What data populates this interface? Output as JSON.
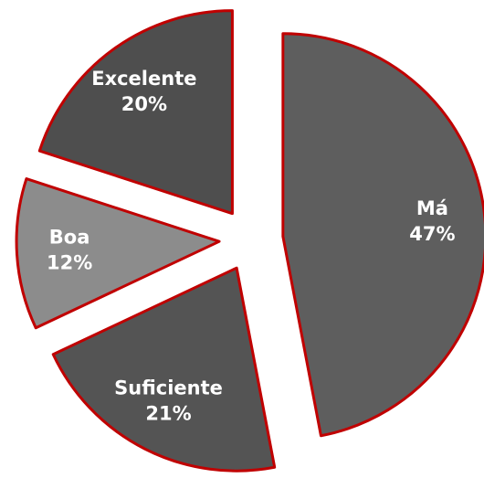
{
  "chart_data": {
    "type": "pie",
    "categories": [
      "Má",
      "Suficiente",
      "Boa",
      "Excelente"
    ],
    "values": [
      47,
      21,
      12,
      20
    ],
    "value_labels": [
      "47%",
      "21%",
      "12%",
      "20%"
    ],
    "colors": [
      "#5e5e5e",
      "#545454",
      "#8c8c8c",
      "#4e4e4e"
    ],
    "edge_color": "#c00000",
    "exploded": true
  }
}
